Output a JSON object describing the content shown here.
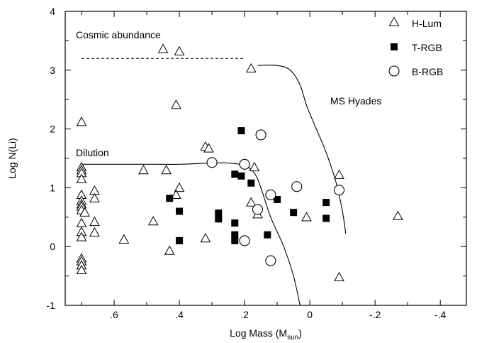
{
  "chart_data": {
    "type": "scatter",
    "title": "",
    "xlabel": "Log Mass (M",
    "xlabel_sub": "sun",
    "xlabel_close": ")",
    "ylabel": "Log N(Li)",
    "xlim": [
      0.75,
      -0.48
    ],
    "ylim": [
      -1,
      4
    ],
    "x_reversed": true,
    "x_ticks": [
      {
        "value": 0.6,
        "label": ".6"
      },
      {
        "value": 0.4,
        "label": ".4"
      },
      {
        "value": 0.2,
        "label": ".2"
      },
      {
        "value": 0.0,
        "label": "0"
      },
      {
        "value": -0.2,
        "label": "-.2"
      },
      {
        "value": -0.4,
        "label": "-.4"
      }
    ],
    "y_ticks": [
      {
        "value": -1,
        "label": "-1"
      },
      {
        "value": 0,
        "label": "0"
      },
      {
        "value": 1,
        "label": "1"
      },
      {
        "value": 2,
        "label": "2"
      },
      {
        "value": 3,
        "label": "3"
      },
      {
        "value": 4,
        "label": "4"
      }
    ],
    "grid": false,
    "legend_position": "top-right",
    "series": [
      {
        "name": "H-Lum",
        "marker": "open-triangle",
        "points": [
          [
            0.7,
            2.12
          ],
          [
            0.7,
            1.35
          ],
          [
            0.7,
            1.3
          ],
          [
            0.7,
            1.25
          ],
          [
            0.7,
            1.15
          ],
          [
            0.7,
            0.88
          ],
          [
            0.7,
            0.78
          ],
          [
            0.7,
            0.72
          ],
          [
            0.7,
            0.68
          ],
          [
            0.7,
            0.62
          ],
          [
            0.69,
            0.58
          ],
          [
            0.7,
            0.4
          ],
          [
            0.7,
            0.25
          ],
          [
            0.7,
            0.16
          ],
          [
            0.7,
            -0.2
          ],
          [
            0.7,
            -0.25
          ],
          [
            0.7,
            -0.32
          ],
          [
            0.7,
            -0.4
          ],
          [
            0.66,
            0.95
          ],
          [
            0.66,
            0.82
          ],
          [
            0.66,
            0.42
          ],
          [
            0.66,
            0.24
          ],
          [
            0.57,
            0.12
          ],
          [
            0.51,
            1.3
          ],
          [
            0.48,
            0.43
          ],
          [
            0.45,
            3.36
          ],
          [
            0.44,
            1.3
          ],
          [
            0.43,
            -0.07
          ],
          [
            0.41,
            2.41
          ],
          [
            0.4,
            3.32
          ],
          [
            0.4,
            1.0
          ],
          [
            0.41,
            0.88
          ],
          [
            0.32,
            1.7
          ],
          [
            0.31,
            1.67
          ],
          [
            0.32,
            0.14
          ],
          [
            0.18,
            3.03
          ],
          [
            0.17,
            1.35
          ],
          [
            0.18,
            0.75
          ],
          [
            0.16,
            0.55
          ],
          [
            0.01,
            0.5
          ],
          [
            -0.09,
            1.22
          ],
          [
            -0.09,
            -0.52
          ],
          [
            -0.27,
            0.52
          ]
        ]
      },
      {
        "name": "T-RGB",
        "marker": "filled-square",
        "points": [
          [
            0.21,
            1.97
          ],
          [
            0.23,
            1.23
          ],
          [
            0.21,
            1.2
          ],
          [
            0.18,
            1.08
          ],
          [
            0.1,
            0.8
          ],
          [
            0.05,
            0.58
          ],
          [
            -0.05,
            0.75
          ],
          [
            -0.05,
            0.48
          ],
          [
            0.43,
            0.82
          ],
          [
            0.4,
            0.6
          ],
          [
            0.4,
            0.1
          ],
          [
            0.28,
            0.57
          ],
          [
            0.28,
            0.47
          ],
          [
            0.23,
            0.4
          ],
          [
            0.23,
            0.2
          ],
          [
            0.23,
            0.1
          ],
          [
            0.13,
            0.2
          ]
        ]
      },
      {
        "name": "B-RGB",
        "marker": "open-circle",
        "points": [
          [
            0.15,
            1.9
          ],
          [
            0.3,
            1.43
          ],
          [
            0.2,
            1.4
          ],
          [
            0.12,
            0.88
          ],
          [
            0.04,
            1.02
          ],
          [
            -0.09,
            0.96
          ],
          [
            0.16,
            0.63
          ],
          [
            0.2,
            0.1
          ],
          [
            0.12,
            -0.24
          ]
        ]
      }
    ],
    "curves": [
      {
        "label": "Dilution",
        "points": [
          [
            0.7,
            1.4
          ],
          [
            0.6,
            1.4
          ],
          [
            0.5,
            1.4
          ],
          [
            0.4,
            1.4
          ],
          [
            0.3,
            1.42
          ],
          [
            0.25,
            1.42
          ],
          [
            0.2,
            1.38
          ],
          [
            0.17,
            1.25
          ],
          [
            0.15,
            1.0
          ],
          [
            0.12,
            0.5
          ],
          [
            0.08,
            0.0
          ],
          [
            0.05,
            -0.5
          ],
          [
            0.03,
            -1.0
          ]
        ]
      },
      {
        "label": "MS Hyades",
        "points": [
          [
            0.16,
            3.08
          ],
          [
            0.1,
            3.08
          ],
          [
            0.06,
            3.0
          ],
          [
            0.03,
            2.75
          ],
          [
            0.01,
            2.4
          ],
          [
            -0.02,
            2.0
          ],
          [
            -0.05,
            1.6
          ],
          [
            -0.08,
            1.1
          ],
          [
            -0.1,
            0.6
          ],
          [
            -0.11,
            0.22
          ]
        ]
      }
    ],
    "reference_lines": [
      {
        "label": "Cosmic abundance",
        "style": "dashed",
        "y": 3.2,
        "x_from": 0.7,
        "x_to": 0.2
      }
    ]
  }
}
